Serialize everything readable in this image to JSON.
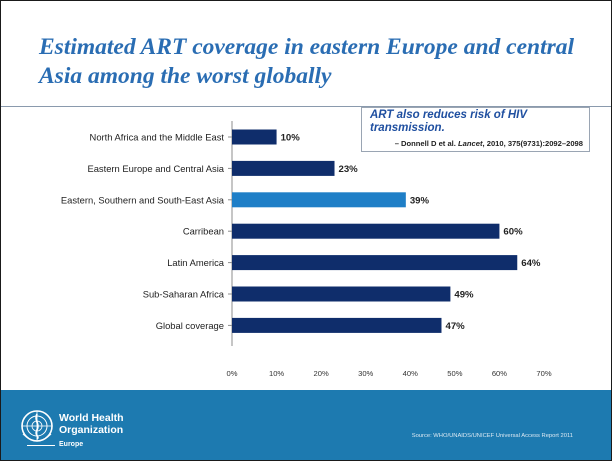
{
  "slide": {
    "title": "Estimated ART coverage in eastern Europe and central Asia among the worst globally"
  },
  "callout": {
    "text": "ART also reduces risk of HIV transmission.",
    "citation_prefix": "– Donnell D et al.",
    "citation_journal": "Lancet",
    "citation_suffix": ", 2010, 375(9731):2092–2098"
  },
  "footer": {
    "org_line1": "World Health",
    "org_line2": "Organization",
    "region": "Europe",
    "source": "Source: WHO/UNAIDS/UNICEF Universal Access Report 2011",
    "logo_icon": "un-emblem-icon"
  },
  "chart_data": {
    "type": "bar",
    "orientation": "horizontal",
    "categories": [
      "North Africa and the Middle East",
      "Eastern Europe and Central Asia",
      "Eastern, Southern and South-East Asia",
      "Carribean",
      "Latin America",
      "Sub-Saharan Africa",
      "Global coverage"
    ],
    "values": [
      10,
      23,
      39,
      60,
      64,
      49,
      47
    ],
    "value_labels": [
      "10%",
      "23%",
      "39%",
      "60%",
      "64%",
      "49%",
      "47%"
    ],
    "xlim": [
      0,
      70
    ],
    "x_ticks": [
      "0%",
      "10%",
      "20%",
      "30%",
      "40%",
      "50%",
      "60%",
      "70%"
    ],
    "highlighted_index": 2,
    "colors": {
      "default": "#0f2d6b",
      "highlight": "#1f7fc7"
    },
    "grid": false,
    "legend": "none"
  }
}
